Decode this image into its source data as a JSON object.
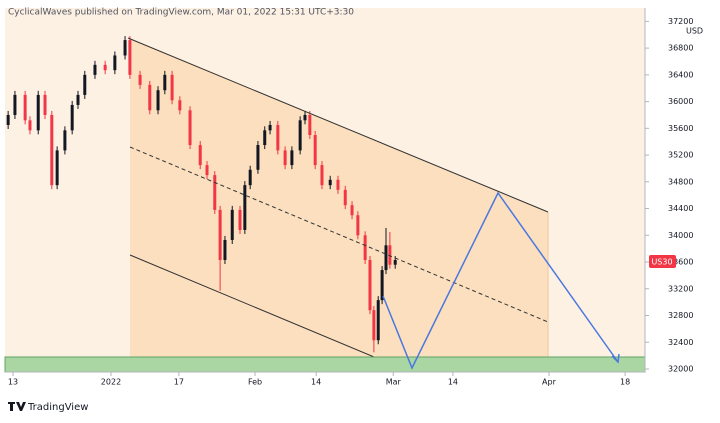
{
  "chart_data": {
    "type": "candlestick",
    "title": "CyclicalWaves published on TradingView.com, Mar 01, 2022 15:31 UTC+3:30",
    "currency": "USD",
    "symbol_label": "US30",
    "footer": "TradingView",
    "up_color": "#131722",
    "down_color": "#f23645",
    "x": [
      -1.0,
      0.4,
      2.5,
      3.5,
      5.2,
      6.6,
      8.0,
      9.1,
      10.7,
      12.2,
      13.4,
      14.8,
      16.9,
      19.0,
      21.0,
      23.1,
      24.1,
      26.2,
      28.2,
      29.9,
      31.3,
      32.8,
      34.4,
      36.5,
      38.6,
      40.0,
      41.6,
      42.7,
      43.7,
      45.2,
      46.8,
      47.8,
      48.9,
      50.5,
      51.9,
      53.0,
      54.6,
      56.1,
      57.5,
      59.2,
      60.2,
      61.2,
      62.3,
      63.7,
      65.4,
      67.0,
      68.5,
      69.9,
      71.1,
      72.6,
      73.6,
      74.4,
      75.3,
      76.1,
      76.9,
      77.7,
      78.8
    ],
    "open": [
      35650,
      35800,
      36100,
      35720,
      35570,
      36100,
      35800,
      34750,
      35270,
      35570,
      35950,
      36100,
      36400,
      36550,
      36470,
      36690,
      36920,
      36400,
      36250,
      35870,
      36170,
      36400,
      36020,
      35870,
      35350,
      35050,
      34900,
      34380,
      33630,
      33930,
      34380,
      34080,
      34750,
      34980,
      35350,
      35570,
      35650,
      35270,
      35050,
      35270,
      35720,
      35800,
      35500,
      35050,
      34750,
      34830,
      34680,
      34450,
      34300,
      34000,
      33630,
      32880,
      32430,
      33030,
      33480,
      33850,
      33560
    ],
    "high": [
      35860,
      36160,
      36160,
      35780,
      36160,
      36160,
      35860,
      35330,
      35630,
      36010,
      36160,
      36460,
      36610,
      36610,
      36750,
      36980,
      36980,
      36460,
      36310,
      36230,
      36460,
      36460,
      36080,
      35930,
      35410,
      35110,
      34960,
      34440,
      33990,
      34440,
      34440,
      34810,
      35040,
      35410,
      35630,
      35710,
      35710,
      35330,
      35330,
      35780,
      35860,
      35860,
      35560,
      35110,
      34890,
      34890,
      34740,
      34510,
      34360,
      34060,
      33690,
      32940,
      33090,
      33540,
      34110,
      34050,
      33690
    ],
    "low": [
      35590,
      35740,
      35660,
      35510,
      35510,
      35740,
      34690,
      34690,
      35210,
      35510,
      35890,
      36040,
      36340,
      36410,
      36410,
      36630,
      36340,
      36190,
      35810,
      35810,
      36110,
      35960,
      35810,
      35290,
      34990,
      34840,
      34320,
      33170,
      33570,
      33870,
      34020,
      34020,
      34690,
      34920,
      35290,
      35510,
      35210,
      34990,
      34990,
      35210,
      35660,
      35440,
      34990,
      34690,
      34690,
      34620,
      34390,
      34240,
      33940,
      33570,
      32820,
      32250,
      32370,
      32970,
      33420,
      33500,
      33500
    ],
    "close": [
      35800,
      36100,
      35720,
      35570,
      36100,
      35800,
      34750,
      35270,
      35570,
      35950,
      36100,
      36400,
      36550,
      36470,
      36690,
      36920,
      36400,
      36250,
      35870,
      36170,
      36400,
      36020,
      35870,
      35350,
      35050,
      34900,
      34380,
      33630,
      33930,
      34380,
      34080,
      34750,
      34980,
      35350,
      35570,
      35650,
      35270,
      35050,
      35270,
      35720,
      35800,
      35500,
      35050,
      34750,
      34830,
      34680,
      34450,
      34300,
      34000,
      33630,
      32880,
      32430,
      33030,
      33480,
      33850,
      33560,
      33630
    ],
    "xlim": [
      -1.65,
      130.3
    ],
    "xticks": [
      {
        "value": 0,
        "label": "13"
      },
      {
        "value": 20.2,
        "label": "2022"
      },
      {
        "value": 34.2,
        "label": "17"
      },
      {
        "value": 49.9,
        "label": "Feb"
      },
      {
        "value": 62.5,
        "label": "14"
      },
      {
        "value": 78.4,
        "label": "Mar"
      },
      {
        "value": 90.7,
        "label": "14"
      },
      {
        "value": 110.5,
        "label": "Apr"
      },
      {
        "value": 126.2,
        "label": "18"
      }
    ],
    "ylim": [
      31955,
      37400
    ],
    "yticks": [
      32000,
      32400,
      32800,
      33200,
      33600,
      34000,
      34400,
      34800,
      35200,
      35600,
      36000,
      36400,
      36800,
      37200
    ]
  }
}
